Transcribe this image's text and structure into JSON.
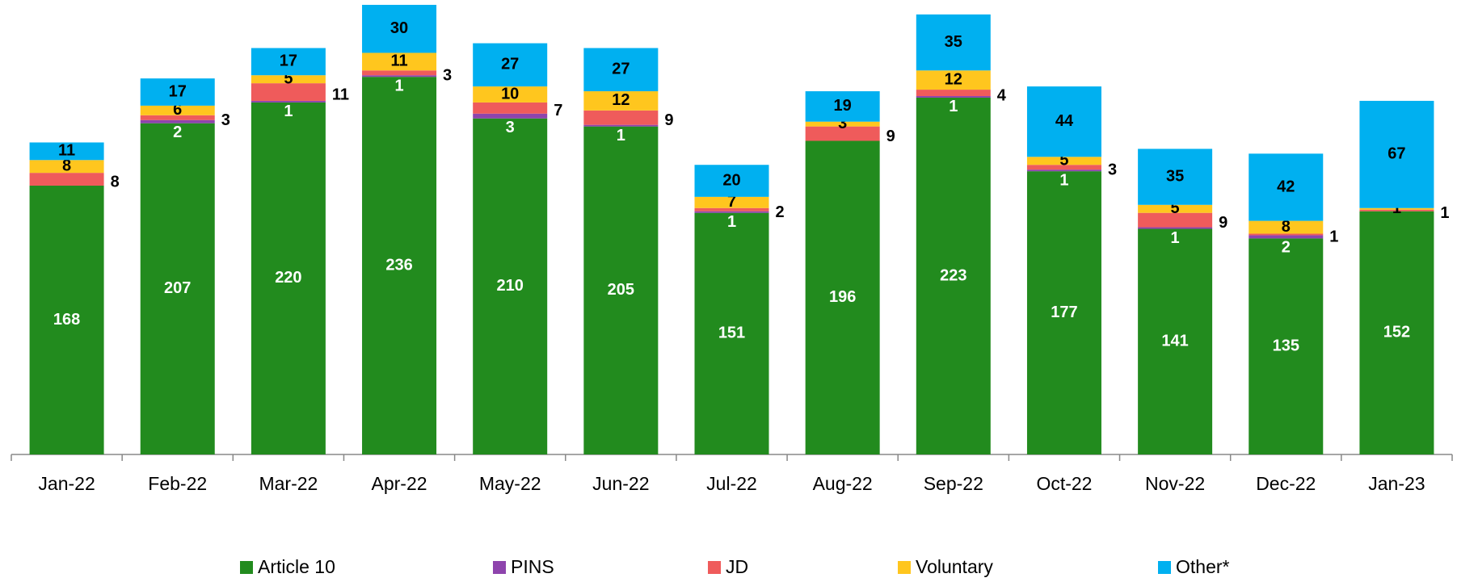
{
  "chart_data": {
    "type": "stacked-bar",
    "categories": [
      "Jan-22",
      "Feb-22",
      "Mar-22",
      "Apr-22",
      "May-22",
      "Jun-22",
      "Jul-22",
      "Aug-22",
      "Sep-22",
      "Oct-22",
      "Nov-22",
      "Dec-22",
      "Jan-23"
    ],
    "series": [
      {
        "name": "Article 10",
        "color": "#228b1e",
        "values": [
          168,
          207,
          220,
          236,
          210,
          205,
          151,
          196,
          223,
          177,
          141,
          135,
          152
        ]
      },
      {
        "name": "PINS",
        "color": "#8e44ad",
        "values": [
          null,
          2,
          1,
          1,
          3,
          1,
          1,
          null,
          1,
          1,
          1,
          2,
          null
        ]
      },
      {
        "name": "JD",
        "color": "#ef5b5b",
        "values": [
          8,
          3,
          11,
          3,
          7,
          9,
          2,
          9,
          4,
          3,
          9,
          1,
          1
        ]
      },
      {
        "name": "Voluntary",
        "color": "#ffc61e",
        "values": [
          8,
          6,
          5,
          11,
          10,
          12,
          7,
          3,
          12,
          5,
          5,
          8,
          1
        ]
      },
      {
        "name": "Other*",
        "color": "#00b0f0",
        "values": [
          11,
          17,
          17,
          30,
          27,
          27,
          20,
          19,
          35,
          44,
          35,
          42,
          67
        ]
      }
    ]
  }
}
